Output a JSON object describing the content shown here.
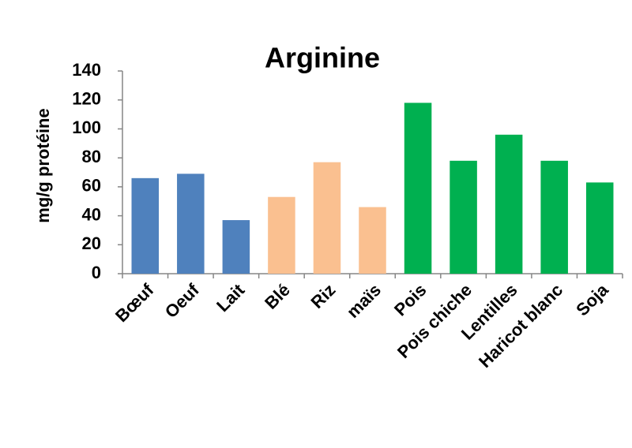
{
  "chart_data": {
    "type": "bar",
    "title": "Arginine",
    "y_label": "mg/g protéine",
    "categories": [
      "Bœuf",
      "Oeuf",
      "Lait",
      "Blé",
      "Riz",
      "maïs",
      "Pois",
      "Pois chiche",
      "Lentilles",
      "Haricot blanc",
      "Soja"
    ],
    "values": [
      66,
      69,
      37,
      53,
      77,
      46,
      118,
      78,
      96,
      78,
      63
    ],
    "colors": [
      "#4f81bd",
      "#4f81bd",
      "#4f81bd",
      "#fac090",
      "#fac090",
      "#fac090",
      "#00b050",
      "#00b050",
      "#00b050",
      "#00b050",
      "#00b050"
    ],
    "ylim": [
      0,
      140
    ],
    "yticks": [
      0,
      20,
      40,
      60,
      80,
      100,
      120,
      140
    ],
    "grid": false
  }
}
